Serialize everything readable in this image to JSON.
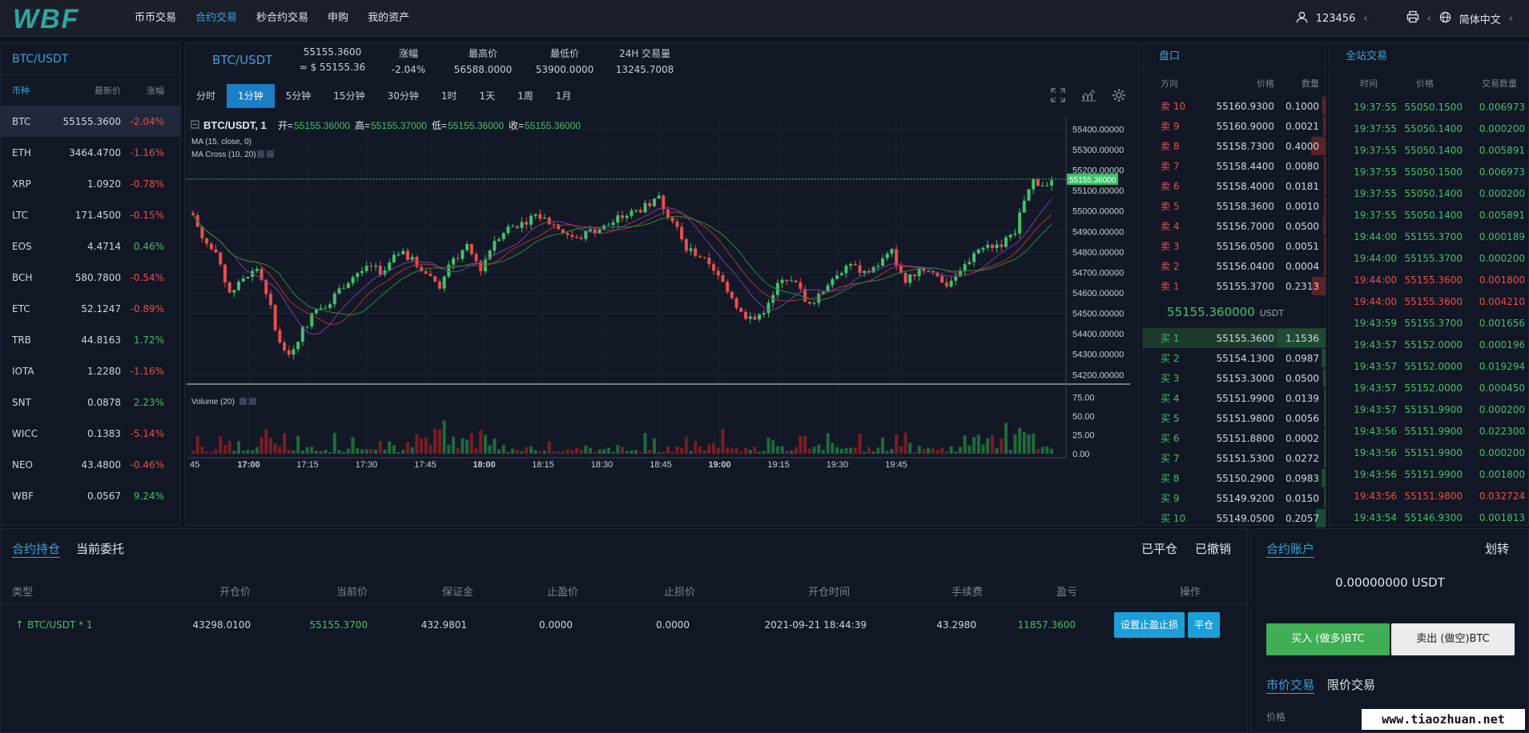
{
  "nav": {
    "items": [
      "币币交易",
      "合约交易",
      "秒合约交易",
      "申购",
      "我的资产"
    ],
    "active_index": 1
  },
  "user": {
    "name": "123456",
    "language": "简体中文"
  },
  "market": {
    "title": "BTC/USDT",
    "headers": [
      "币种",
      "最新价",
      "涨幅"
    ],
    "rows": [
      {
        "sym": "BTC",
        "price": "55155.3600",
        "chg": "-2.04%",
        "dir": "down"
      },
      {
        "sym": "ETH",
        "price": "3464.4700",
        "chg": "-1.16%",
        "dir": "down"
      },
      {
        "sym": "XRP",
        "price": "1.0920",
        "chg": "-0.78%",
        "dir": "down"
      },
      {
        "sym": "LTC",
        "price": "171.4500",
        "chg": "-0.15%",
        "dir": "down"
      },
      {
        "sym": "EOS",
        "price": "4.4714",
        "chg": "0.46%",
        "dir": "up"
      },
      {
        "sym": "BCH",
        "price": "580.7800",
        "chg": "-0.54%",
        "dir": "down"
      },
      {
        "sym": "ETC",
        "price": "52.1247",
        "chg": "-0.89%",
        "dir": "down"
      },
      {
        "sym": "TRB",
        "price": "44.8163",
        "chg": "1.72%",
        "dir": "up"
      },
      {
        "sym": "IOTA",
        "price": "1.2280",
        "chg": "-1.16%",
        "dir": "down"
      },
      {
        "sym": "SNT",
        "price": "0.0878",
        "chg": "2.23%",
        "dir": "up"
      },
      {
        "sym": "WICC",
        "price": "0.1383",
        "chg": "-5.14%",
        "dir": "down"
      },
      {
        "sym": "NEO",
        "price": "43.4800",
        "chg": "-0.46%",
        "dir": "down"
      },
      {
        "sym": "WBF",
        "price": "0.0567",
        "chg": "9.24%",
        "dir": "up"
      }
    ]
  },
  "ticker": {
    "pair": "BTC/USDT",
    "price": "55155.3600",
    "approx": "≈ $ 55155.36",
    "change_label": "涨幅",
    "change": "-2.04%",
    "high_label": "最高价",
    "high": "56588.0000",
    "low_label": "最低价",
    "low": "53900.0000",
    "vol_label": "24H 交易量",
    "vol": "13245.7008"
  },
  "intervals": [
    "分时",
    "1分钟",
    "5分钟",
    "15分钟",
    "30分钟",
    "1时",
    "1天",
    "1周",
    "1月"
  ],
  "interval_active": 1,
  "chart_data": {
    "type": "candlestick",
    "title": "BTC/USDT, 1",
    "ohlc_label": {
      "open_label": "开=",
      "open": "55155.36000",
      "high_label": "高=",
      "high": "55155.37000",
      "low_label": "低=",
      "low": "55155.36000",
      "close_label": "收=",
      "close": "55155.36000"
    },
    "studies": [
      "MA (15, close, 0)",
      "MA Cross (10, 20)"
    ],
    "volume_label": "Volume (20)",
    "y_ticks": [
      "55400.00000",
      "55300.00000",
      "55200.00000",
      "55100.00000",
      "55000.00000",
      "54900.00000",
      "54800.00000",
      "54700.00000",
      "54600.00000",
      "54500.00000",
      "54400.00000",
      "54300.00000",
      "54200.00000"
    ],
    "ylim": [
      54170,
      55460
    ],
    "last_price": "55155.36000",
    "vol_ticks": [
      "75.00",
      "50.00",
      "25.00",
      "0.00"
    ],
    "vol_ylim": [
      0,
      80
    ],
    "x_ticks": [
      "45",
      "17:00",
      "17:15",
      "17:30",
      "17:45",
      "18:00",
      "18:15",
      "18:30",
      "18:45",
      "19:00",
      "19:15",
      "19:30",
      "19:45"
    ],
    "x_bold": [
      "17:00",
      "18:00",
      "19:00"
    ],
    "close_path": [
      [
        0,
        54980
      ],
      [
        2,
        54870
      ],
      [
        5,
        54780
      ],
      [
        8,
        54600
      ],
      [
        11,
        54660
      ],
      [
        14,
        54720
      ],
      [
        16,
        54610
      ],
      [
        19,
        54350
      ],
      [
        21,
        54300
      ],
      [
        24,
        54420
      ],
      [
        27,
        54520
      ],
      [
        30,
        54560
      ],
      [
        33,
        54640
      ],
      [
        36,
        54700
      ],
      [
        39,
        54720
      ],
      [
        42,
        54700
      ],
      [
        45,
        54800
      ],
      [
        48,
        54760
      ],
      [
        51,
        54700
      ],
      [
        54,
        54640
      ],
      [
        57,
        54760
      ],
      [
        60,
        54820
      ],
      [
        63,
        54720
      ],
      [
        66,
        54860
      ],
      [
        69,
        54920
      ],
      [
        72,
        54940
      ],
      [
        75,
        54980
      ],
      [
        78,
        54950
      ],
      [
        81,
        54900
      ],
      [
        84,
        54860
      ],
      [
        87,
        54900
      ],
      [
        90,
        54920
      ],
      [
        93,
        54960
      ],
      [
        96,
        54990
      ],
      [
        99,
        55020
      ],
      [
        102,
        55060
      ],
      [
        104,
        54980
      ],
      [
        106,
        54920
      ],
      [
        108,
        54820
      ],
      [
        111,
        54780
      ],
      [
        114,
        54700
      ],
      [
        117,
        54620
      ],
      [
        120,
        54500
      ],
      [
        123,
        54470
      ],
      [
        126,
        54540
      ],
      [
        129,
        54680
      ],
      [
        132,
        54640
      ],
      [
        135,
        54540
      ],
      [
        138,
        54620
      ],
      [
        141,
        54700
      ],
      [
        144,
        54740
      ],
      [
        147,
        54690
      ],
      [
        150,
        54740
      ],
      [
        153,
        54800
      ],
      [
        156,
        54650
      ],
      [
        159,
        54720
      ],
      [
        162,
        54700
      ],
      [
        165,
        54640
      ],
      [
        168,
        54700
      ],
      [
        171,
        54800
      ],
      [
        174,
        54830
      ],
      [
        177,
        54840
      ],
      [
        180,
        54900
      ],
      [
        182,
        55050
      ],
      [
        184,
        55150
      ],
      [
        186,
        55130
      ],
      [
        188,
        55155
      ]
    ],
    "ma_colors": [
      "#7a3fa0",
      "#b0313a",
      "#2c8a3c",
      "#2d4cc8"
    ]
  },
  "orderbook": {
    "title": "盘口",
    "headers": [
      "方向",
      "价格",
      "数量"
    ],
    "asks": [
      {
        "side": "卖 10",
        "price": "55160.9300",
        "qty": "0.1000",
        "depth": 0.07
      },
      {
        "side": "卖 9",
        "price": "55160.9000",
        "qty": "0.0021",
        "depth": 0.05
      },
      {
        "side": "卖 8",
        "price": "55158.7300",
        "qty": "0.4000",
        "depth": 0.3
      },
      {
        "side": "卖 7",
        "price": "55158.4400",
        "qty": "0.0080",
        "depth": 0.02
      },
      {
        "side": "卖 6",
        "price": "55158.4000",
        "qty": "0.0181",
        "depth": 0.03
      },
      {
        "side": "卖 5",
        "price": "55158.3600",
        "qty": "0.0010",
        "depth": 0.02
      },
      {
        "side": "卖 4",
        "price": "55156.7000",
        "qty": "0.0500",
        "depth": 0.05
      },
      {
        "side": "卖 3",
        "price": "55156.0500",
        "qty": "0.0051",
        "depth": 0.03
      },
      {
        "side": "卖 2",
        "price": "55156.0400",
        "qty": "0.0004",
        "depth": 0.02
      },
      {
        "side": "卖 1",
        "price": "55155.3700",
        "qty": "0.2313",
        "depth": 0.28
      }
    ],
    "last": "55155.360000",
    "last_unit": "USDT",
    "bids": [
      {
        "side": "买 1",
        "price": "55155.3600",
        "qty": "1.1536",
        "depth": 1.0
      },
      {
        "side": "买 2",
        "price": "55154.1300",
        "qty": "0.0987",
        "depth": 0.09
      },
      {
        "side": "买 3",
        "price": "55153.3000",
        "qty": "0.0500",
        "depth": 0.05
      },
      {
        "side": "买 4",
        "price": "55151.9900",
        "qty": "0.0139",
        "depth": 0.02
      },
      {
        "side": "买 5",
        "price": "55151.9800",
        "qty": "0.0056",
        "depth": 0.02
      },
      {
        "side": "买 6",
        "price": "55151.8800",
        "qty": "0.0002",
        "depth": 0.01
      },
      {
        "side": "买 7",
        "price": "55151.5300",
        "qty": "0.0272",
        "depth": 0.04
      },
      {
        "side": "买 8",
        "price": "55150.2900",
        "qty": "0.0983",
        "depth": 0.09
      },
      {
        "side": "买 9",
        "price": "55149.9200",
        "qty": "0.0150",
        "depth": 0.03
      },
      {
        "side": "买 10",
        "price": "55149.0500",
        "qty": "0.2057",
        "depth": 0.2
      }
    ]
  },
  "trades": {
    "title": "全站交易",
    "headers": [
      "时间",
      "价格",
      "交易数量"
    ],
    "rows": [
      {
        "t": "19:37:55",
        "p": "55050.1500",
        "q": "0.006973",
        "dir": "up"
      },
      {
        "t": "19:37:55",
        "p": "55050.1400",
        "q": "0.000200",
        "dir": "up"
      },
      {
        "t": "19:37:55",
        "p": "55050.1400",
        "q": "0.005891",
        "dir": "up"
      },
      {
        "t": "19:37:55",
        "p": "55050.1500",
        "q": "0.006973",
        "dir": "up"
      },
      {
        "t": "19:37:55",
        "p": "55050.1400",
        "q": "0.000200",
        "dir": "up"
      },
      {
        "t": "19:37:55",
        "p": "55050.1400",
        "q": "0.005891",
        "dir": "up"
      },
      {
        "t": "19:44:00",
        "p": "55155.3700",
        "q": "0.000189",
        "dir": "up"
      },
      {
        "t": "19:44:00",
        "p": "55155.3700",
        "q": "0.000200",
        "dir": "up"
      },
      {
        "t": "19:44:00",
        "p": "55155.3600",
        "q": "0.001800",
        "dir": "down"
      },
      {
        "t": "19:44:00",
        "p": "55155.3600",
        "q": "0.004210",
        "dir": "down"
      },
      {
        "t": "19:43:59",
        "p": "55155.3700",
        "q": "0.001656",
        "dir": "up"
      },
      {
        "t": "19:43:57",
        "p": "55152.0000",
        "q": "0.000196",
        "dir": "up"
      },
      {
        "t": "19:43:57",
        "p": "55152.0000",
        "q": "0.019294",
        "dir": "up"
      },
      {
        "t": "19:43:57",
        "p": "55152.0000",
        "q": "0.000450",
        "dir": "up"
      },
      {
        "t": "19:43:57",
        "p": "55151.9900",
        "q": "0.000200",
        "dir": "up"
      },
      {
        "t": "19:43:56",
        "p": "55151.9900",
        "q": "0.022300",
        "dir": "up"
      },
      {
        "t": "19:43:56",
        "p": "55151.9900",
        "q": "0.000200",
        "dir": "up"
      },
      {
        "t": "19:43:56",
        "p": "55151.9900",
        "q": "0.001800",
        "dir": "up"
      },
      {
        "t": "19:43:56",
        "p": "55151.9800",
        "q": "0.032724",
        "dir": "down"
      },
      {
        "t": "19:43:54",
        "p": "55146.9300",
        "q": "0.001813",
        "dir": "up"
      }
    ]
  },
  "positions": {
    "tabs": [
      "合约持仓",
      "当前委托"
    ],
    "actions": [
      "已平仓",
      "已撤销"
    ],
    "headers": [
      "类型",
      "开仓价",
      "当前价",
      "保证金",
      "止盈价",
      "止损价",
      "开仓时间",
      "手续费",
      "盈亏",
      "操作"
    ],
    "row": {
      "type": "BTC/USDT * 1",
      "open": "43298.0100",
      "current": "55155.3700",
      "margin": "432.9801",
      "tp": "0.0000",
      "sl": "0.0000",
      "time": "2021-09-21 18:44:39",
      "fee": "43.2980",
      "pnl": "11857.3600",
      "btn_set": "设置止盈止损",
      "btn_close": "平仓"
    }
  },
  "account": {
    "tab": "合约账户",
    "transfer": "划转",
    "balance": "0.00000000 USDT",
    "buy": "买入 (做多)BTC",
    "sell": "卖出 (做空)BTC",
    "order_tabs": [
      "市价交易",
      "限价交易"
    ],
    "price_label": "价格"
  },
  "watermark": "www.tiaozhuan.net",
  "logo_text": "WBF",
  "colors": {
    "accent": "#37a5d8",
    "up": "#3ec26b",
    "down": "#e94e4e",
    "bg": "#0e1320",
    "panel": "#121725"
  }
}
